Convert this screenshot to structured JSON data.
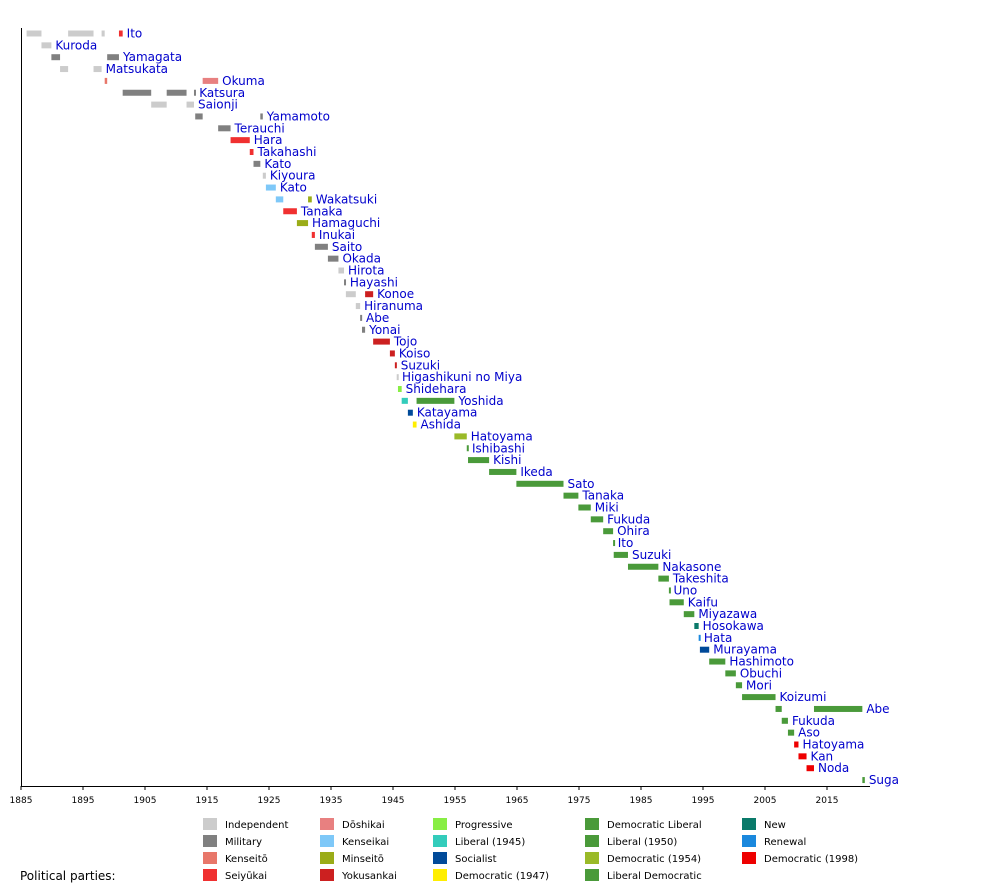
{
  "chart_data": {
    "type": "gantt-timeline",
    "title": "",
    "x_axis": {
      "min": 1885,
      "max": 2021,
      "ticks": [
        1885,
        1895,
        1905,
        1915,
        1925,
        1935,
        1945,
        1955,
        1965,
        1975,
        1985,
        1995,
        2005,
        2015
      ]
    },
    "legend_title": "Political parties:",
    "parties": [
      {
        "key": "independent",
        "label": "Independent",
        "color": "#cccccc"
      },
      {
        "key": "military",
        "label": "Military",
        "color": "#808080"
      },
      {
        "key": "kenseito",
        "label": "Kenseitō",
        "color": "#e8776a"
      },
      {
        "key": "seiyukai",
        "label": "Seiyūkai",
        "color": "#f03030"
      },
      {
        "key": "doshikai",
        "label": "Dōshikai",
        "color": "#e88080"
      },
      {
        "key": "kenseikai",
        "label": "Kenseikai",
        "color": "#7ec8f8"
      },
      {
        "key": "minseito",
        "label": "Minseitō",
        "color": "#9aac18"
      },
      {
        "key": "yokusankai",
        "label": "Yokusankai",
        "color": "#cc2020"
      },
      {
        "key": "progressive",
        "label": "Progressive",
        "color": "#88ee44"
      },
      {
        "key": "liberal1945",
        "label": "Liberal (1945)",
        "color": "#33ccbb"
      },
      {
        "key": "socialist",
        "label": "Socialist",
        "color": "#004a99"
      },
      {
        "key": "democratic1947",
        "label": "Democratic (1947)",
        "color": "#ffee00"
      },
      {
        "key": "democraticliberal",
        "label": "Democratic Liberal",
        "color": "#4a9a3a"
      },
      {
        "key": "liberal1950",
        "label": "Liberal (1950)",
        "color": "#4a9a3a"
      },
      {
        "key": "democratic1954",
        "label": "Democratic (1954)",
        "color": "#9aba28"
      },
      {
        "key": "ldp",
        "label": "Liberal Democratic",
        "color": "#4a9a3a"
      },
      {
        "key": "new",
        "label": "New",
        "color": "#0a7a6a"
      },
      {
        "key": "renewal",
        "label": "Renewal",
        "color": "#1a88dd"
      },
      {
        "key": "democratic1998",
        "label": "Democratic (1998)",
        "color": "#ee0000"
      }
    ],
    "prime_ministers": [
      {
        "name": "Ito",
        "terms": [
          [
            1885.9,
            1888.3,
            "independent"
          ],
          [
            1892.6,
            1896.7,
            "independent"
          ],
          [
            1898.0,
            1898.5,
            "independent"
          ],
          [
            1900.8,
            1901.4,
            "seiyukai"
          ]
        ]
      },
      {
        "name": "Kuroda",
        "terms": [
          [
            1888.3,
            1889.9,
            "independent"
          ]
        ]
      },
      {
        "name": "Yamagata",
        "terms": [
          [
            1889.9,
            1891.3,
            "military"
          ],
          [
            1898.9,
            1900.8,
            "military"
          ]
        ]
      },
      {
        "name": "Matsukata",
        "terms": [
          [
            1891.3,
            1892.6,
            "independent"
          ],
          [
            1896.7,
            1898.0,
            "independent"
          ]
        ]
      },
      {
        "name": "Okuma",
        "terms": [
          [
            1898.5,
            1898.9,
            "kenseito"
          ],
          [
            1914.3,
            1916.8,
            "doshikai"
          ]
        ]
      },
      {
        "name": "Katsura",
        "terms": [
          [
            1901.4,
            1906.0,
            "military"
          ],
          [
            1908.5,
            1911.7,
            "military"
          ],
          [
            1912.9,
            1913.1,
            "military"
          ]
        ]
      },
      {
        "name": "Saionji",
        "terms": [
          [
            1906.0,
            1908.5,
            "independent"
          ],
          [
            1911.7,
            1912.9,
            "independent"
          ]
        ]
      },
      {
        "name": "Yamamoto",
        "terms": [
          [
            1913.1,
            1914.3,
            "military"
          ],
          [
            1923.6,
            1924.0,
            "military"
          ]
        ]
      },
      {
        "name": "Terauchi",
        "terms": [
          [
            1916.8,
            1918.8,
            "military"
          ]
        ]
      },
      {
        "name": "Hara",
        "terms": [
          [
            1918.8,
            1921.9,
            "seiyukai"
          ]
        ]
      },
      {
        "name": "Takahashi",
        "terms": [
          [
            1921.9,
            1922.5,
            "seiyukai"
          ]
        ]
      },
      {
        "name": "Kato",
        "terms": [
          [
            1922.5,
            1923.6,
            "military"
          ]
        ]
      },
      {
        "name": "Kiyoura",
        "terms": [
          [
            1924.0,
            1924.5,
            "independent"
          ]
        ]
      },
      {
        "name": "Kato",
        "terms": [
          [
            1924.5,
            1926.1,
            "kenseikai"
          ]
        ]
      },
      {
        "name": "Wakatsuki",
        "terms": [
          [
            1926.1,
            1927.3,
            "kenseikai"
          ],
          [
            1931.3,
            1931.9,
            "minseito"
          ]
        ]
      },
      {
        "name": "Tanaka",
        "terms": [
          [
            1927.3,
            1929.5,
            "seiyukai"
          ]
        ]
      },
      {
        "name": "Hamaguchi",
        "terms": [
          [
            1929.5,
            1931.3,
            "minseito"
          ]
        ]
      },
      {
        "name": "Inukai",
        "terms": [
          [
            1931.9,
            1932.4,
            "seiyukai"
          ]
        ]
      },
      {
        "name": "Saito",
        "terms": [
          [
            1932.4,
            1934.5,
            "military"
          ]
        ]
      },
      {
        "name": "Okada",
        "terms": [
          [
            1934.5,
            1936.2,
            "military"
          ]
        ]
      },
      {
        "name": "Hirota",
        "terms": [
          [
            1936.2,
            1937.1,
            "independent"
          ]
        ]
      },
      {
        "name": "Hayashi",
        "terms": [
          [
            1937.1,
            1937.4,
            "military"
          ]
        ]
      },
      {
        "name": "Konoe",
        "terms": [
          [
            1937.4,
            1939.0,
            "independent"
          ],
          [
            1940.5,
            1941.8,
            "yokusankai"
          ]
        ]
      },
      {
        "name": "Hiranuma",
        "terms": [
          [
            1939.0,
            1939.7,
            "independent"
          ]
        ]
      },
      {
        "name": "Abe",
        "terms": [
          [
            1939.7,
            1940.0,
            "military"
          ]
        ]
      },
      {
        "name": "Yonai",
        "terms": [
          [
            1940.0,
            1940.5,
            "military"
          ]
        ]
      },
      {
        "name": "Tojo",
        "terms": [
          [
            1941.8,
            1944.5,
            "yokusankai"
          ]
        ]
      },
      {
        "name": "Koiso",
        "terms": [
          [
            1944.5,
            1945.3,
            "yokusankai"
          ]
        ]
      },
      {
        "name": "Suzuki",
        "terms": [
          [
            1945.3,
            1945.6,
            "yokusankai"
          ]
        ]
      },
      {
        "name": "Higashikuni no Miya",
        "terms": [
          [
            1945.6,
            1945.8,
            "independent"
          ]
        ]
      },
      {
        "name": "Shidehara",
        "terms": [
          [
            1945.8,
            1946.4,
            "progressive"
          ]
        ]
      },
      {
        "name": "Yoshida",
        "terms": [
          [
            1946.4,
            1947.4,
            "liberal1945"
          ],
          [
            1948.8,
            1954.9,
            "democraticliberal"
          ]
        ]
      },
      {
        "name": "Katayama",
        "terms": [
          [
            1947.4,
            1948.2,
            "socialist"
          ]
        ]
      },
      {
        "name": "Ashida",
        "terms": [
          [
            1948.2,
            1948.8,
            "democratic1947"
          ]
        ]
      },
      {
        "name": "Hatoyama",
        "terms": [
          [
            1954.9,
            1956.9,
            "democratic1954"
          ]
        ]
      },
      {
        "name": "Ishibashi",
        "terms": [
          [
            1956.9,
            1957.1,
            "ldp"
          ]
        ]
      },
      {
        "name": "Kishi",
        "terms": [
          [
            1957.1,
            1960.5,
            "ldp"
          ]
        ]
      },
      {
        "name": "Ikeda",
        "terms": [
          [
            1960.5,
            1964.9,
            "ldp"
          ]
        ]
      },
      {
        "name": "Sato",
        "terms": [
          [
            1964.9,
            1972.5,
            "ldp"
          ]
        ]
      },
      {
        "name": "Tanaka",
        "terms": [
          [
            1972.5,
            1974.9,
            "ldp"
          ]
        ]
      },
      {
        "name": "Miki",
        "terms": [
          [
            1974.9,
            1976.9,
            "ldp"
          ]
        ]
      },
      {
        "name": "Fukuda",
        "terms": [
          [
            1976.9,
            1978.9,
            "ldp"
          ]
        ]
      },
      {
        "name": "Ohira",
        "terms": [
          [
            1978.9,
            1980.5,
            "ldp"
          ]
        ]
      },
      {
        "name": "Ito",
        "terms": [
          [
            1980.5,
            1980.6,
            "ldp"
          ]
        ]
      },
      {
        "name": "Suzuki",
        "terms": [
          [
            1980.6,
            1982.9,
            "ldp"
          ]
        ]
      },
      {
        "name": "Nakasone",
        "terms": [
          [
            1982.9,
            1987.8,
            "ldp"
          ]
        ]
      },
      {
        "name": "Takeshita",
        "terms": [
          [
            1987.8,
            1989.5,
            "ldp"
          ]
        ]
      },
      {
        "name": "Uno",
        "terms": [
          [
            1989.5,
            1989.6,
            "ldp"
          ]
        ]
      },
      {
        "name": "Kaifu",
        "terms": [
          [
            1989.6,
            1991.9,
            "ldp"
          ]
        ]
      },
      {
        "name": "Miyazawa",
        "terms": [
          [
            1991.9,
            1993.6,
            "ldp"
          ]
        ]
      },
      {
        "name": "Hosokawa",
        "terms": [
          [
            1993.6,
            1994.3,
            "new"
          ]
        ]
      },
      {
        "name": "Hata",
        "terms": [
          [
            1994.3,
            1994.5,
            "renewal"
          ]
        ]
      },
      {
        "name": "Murayama",
        "terms": [
          [
            1994.5,
            1996.0,
            "socialist"
          ]
        ]
      },
      {
        "name": "Hashimoto",
        "terms": [
          [
            1996.0,
            1998.6,
            "ldp"
          ]
        ]
      },
      {
        "name": "Obuchi",
        "terms": [
          [
            1998.6,
            2000.3,
            "ldp"
          ]
        ]
      },
      {
        "name": "Mori",
        "terms": [
          [
            2000.3,
            2001.3,
            "ldp"
          ]
        ]
      },
      {
        "name": "Koizumi",
        "terms": [
          [
            2001.3,
            2006.7,
            "ldp"
          ]
        ]
      },
      {
        "name": "Abe",
        "terms": [
          [
            2006.7,
            2007.7,
            "ldp"
          ],
          [
            2012.9,
            2020.7,
            "ldp"
          ]
        ]
      },
      {
        "name": "Fukuda",
        "terms": [
          [
            2007.7,
            2008.7,
            "ldp"
          ]
        ]
      },
      {
        "name": "Aso",
        "terms": [
          [
            2008.7,
            2009.7,
            "ldp"
          ]
        ]
      },
      {
        "name": "Hatoyama",
        "terms": [
          [
            2009.7,
            2010.4,
            "democratic1998"
          ]
        ]
      },
      {
        "name": "Kan",
        "terms": [
          [
            2010.4,
            2011.7,
            "democratic1998"
          ]
        ]
      },
      {
        "name": "Noda",
        "terms": [
          [
            2011.7,
            2012.9,
            "democratic1998"
          ]
        ]
      },
      {
        "name": "Suga",
        "terms": [
          [
            2020.7,
            2021.1,
            "ldp"
          ]
        ]
      }
    ]
  }
}
